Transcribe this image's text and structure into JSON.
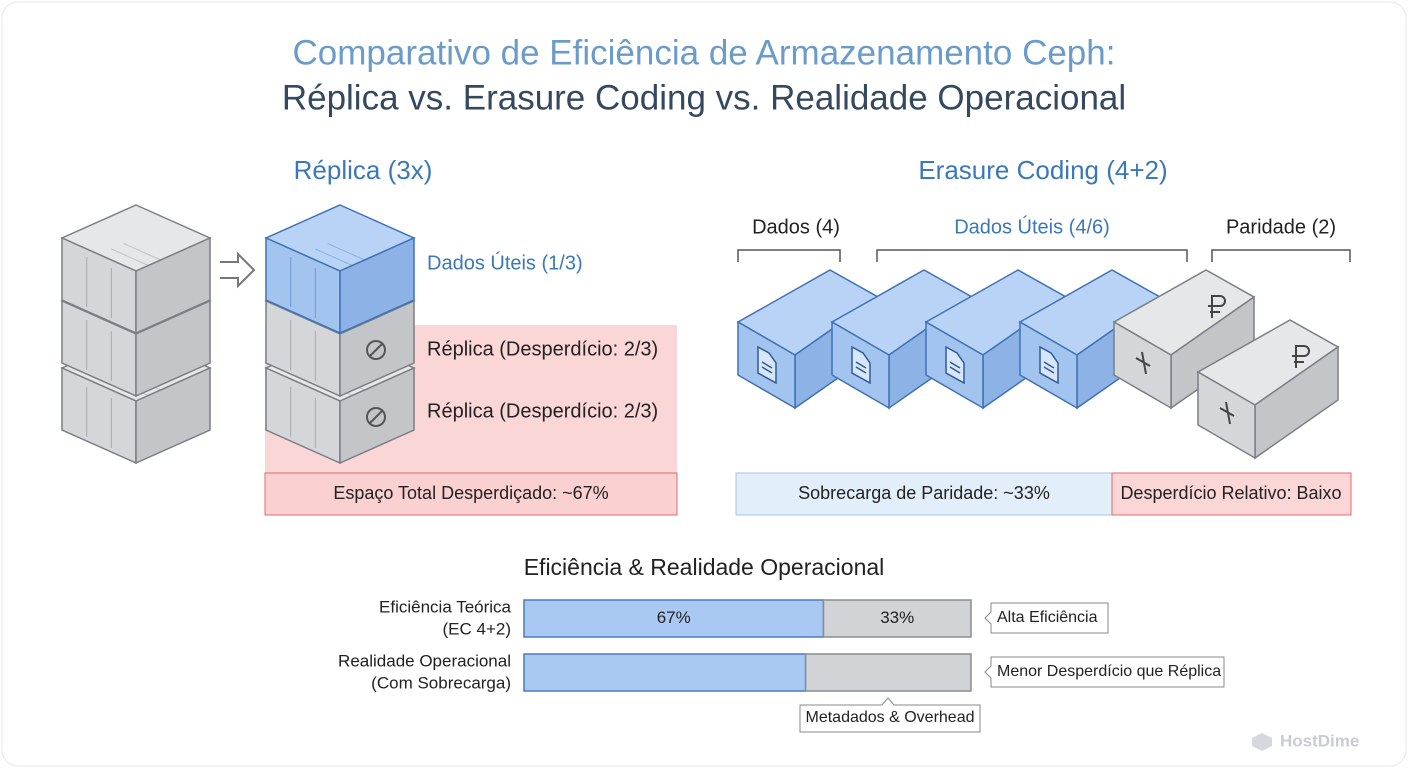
{
  "title": {
    "line1": "Comparativo de Eficiência de Armazenamento Ceph:",
    "line2": "Réplica vs. Erasure Coding vs. Realidade Operacional"
  },
  "replica": {
    "heading": "Réplica (3x)",
    "labels": [
      "Dados Úteis (1/3)",
      "Réplica (Desperdício: 2/3)",
      "Réplica (Desperdício: 2/3)"
    ],
    "footer": "Espaço Total Desperdiçado: ~67%"
  },
  "erasure": {
    "heading": "Erasure Coding (4+2)",
    "groups": [
      "Dados (4)",
      "Dados Úteis (4/6)",
      "Paridade (2)"
    ],
    "footer_left": "Sobrecarga de Paridade: ~33%",
    "footer_right": "Desperdício Relativo: Baixo"
  },
  "efficiency": {
    "title": "Eficiência & Realidade Operacional",
    "rows": [
      {
        "label": [
          "Eficiência Teórica",
          "(EC 4+2)"
        ],
        "segments": [
          {
            "value": 67,
            "label": "67%"
          },
          {
            "value": 33,
            "label": "33%"
          }
        ],
        "note": "Alta Eficiência"
      },
      {
        "label": [
          "Realidade Operacional",
          "(Com Sobrecarga)"
        ],
        "segments": [
          {
            "value": 63
          },
          {
            "value": 37
          }
        ],
        "note": "Menor Desperdício que Réplica",
        "callout": "Metadados & Overhead"
      }
    ]
  },
  "brand": "HostDime"
}
